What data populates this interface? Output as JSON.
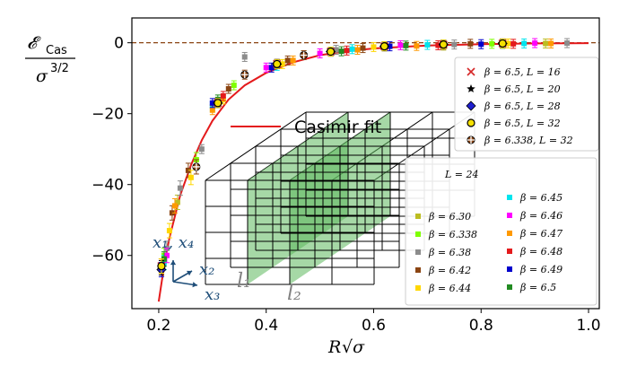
{
  "chart_data": {
    "type": "scatter",
    "xlabel": "R√σ",
    "ylabel": "𝓔Cas / σ^{3/2}",
    "xlim": [
      0.15,
      1.02
    ],
    "ylim": [
      -75,
      7
    ],
    "xticks": [
      "0.2",
      "0.4",
      "0.6",
      "0.8",
      "1.0"
    ],
    "yticks": [
      "0",
      "−20",
      "−40",
      "−60"
    ],
    "reference_line": {
      "y": 0,
      "style": "dashed",
      "color": "#8B4513"
    },
    "fit": {
      "label": "Casimir fit",
      "color": "#e41a1c",
      "x": [
        0.2,
        0.21,
        0.22,
        0.24,
        0.26,
        0.28,
        0.3,
        0.33,
        0.36,
        0.4,
        0.45,
        0.5,
        0.55,
        0.6,
        0.7,
        0.8,
        0.9,
        1.0
      ],
      "y": [
        -73,
        -63,
        -55,
        -43,
        -34.5,
        -27.5,
        -22,
        -16,
        -12,
        -8.5,
        -5.5,
        -3.5,
        -2.4,
        -1.6,
        -0.8,
        -0.4,
        -0.2,
        -0.1
      ]
    },
    "legend_top": [
      {
        "label": "β = 6.5, L = 16",
        "marker": "x",
        "color": "#d62728"
      },
      {
        "label": "β = 6.5, L = 20",
        "marker": "star",
        "color": "#000000"
      },
      {
        "label": "β = 6.5, L = 28",
        "marker": "diamond",
        "color": "#1f1fcf"
      },
      {
        "label": "β = 6.5, L = 32",
        "marker": "circle",
        "color": "#f5e000"
      },
      {
        "label": "β = 6.338, L = 32",
        "marker": "plus",
        "color": "#8B4513"
      }
    ],
    "legend_l24": {
      "title": "L = 24",
      "entries": [
        {
          "label": "β = 6.30",
          "color": "#bcbd22"
        },
        {
          "label": "β = 6.338",
          "color": "#7fff00"
        },
        {
          "label": "β = 6.38",
          "color": "#8c8c8c"
        },
        {
          "label": "β = 6.42",
          "color": "#8B4513"
        },
        {
          "label": "β = 6.44",
          "color": "#ffd700"
        },
        {
          "label": "β = 6.45",
          "color": "#00e5ee"
        },
        {
          "label": "β = 6.46",
          "color": "#ff00ff"
        },
        {
          "label": "β = 6.47",
          "color": "#ff9900"
        },
        {
          "label": "β = 6.48",
          "color": "#e41a1c"
        },
        {
          "label": "β = 6.49",
          "color": "#0000cd"
        },
        {
          "label": "β = 6.5",
          "color": "#228b22"
        }
      ]
    },
    "inset_labels": {
      "axis_top": "x₁, x₄",
      "axis_mid": "x₂",
      "axis_bot": "x₃",
      "l1": "l₁",
      "l2": "l₂"
    },
    "series": [
      {
        "marker": "square",
        "color": "#bcbd22",
        "x": [
          0.205,
          0.235,
          0.31,
          0.52,
          0.73,
          0.92
        ],
        "y": [
          -63,
          -45,
          -17,
          -2.5,
          -0.8,
          -0.2
        ]
      },
      {
        "marker": "square",
        "color": "#7fff00",
        "x": [
          0.21,
          0.27,
          0.34,
          0.47,
          0.62,
          0.82
        ],
        "y": [
          -60,
          -33,
          -12,
          -3.5,
          -1,
          -0.3
        ]
      },
      {
        "marker": "square",
        "color": "#8c8c8c",
        "x": [
          0.215,
          0.24,
          0.28,
          0.36,
          0.53,
          0.75,
          0.96
        ],
        "y": [
          -58,
          -41,
          -30,
          -4,
          -2,
          -0.5,
          -0.1
        ]
      },
      {
        "marker": "square",
        "color": "#8B4513",
        "x": [
          0.225,
          0.255,
          0.33,
          0.44,
          0.58,
          0.78
        ],
        "y": [
          -48,
          -36,
          -13,
          -5,
          -1.5,
          -0.3
        ]
      },
      {
        "marker": "square",
        "color": "#ffd700",
        "x": [
          0.22,
          0.26,
          0.32,
          0.43,
          0.6,
          0.85
        ],
        "y": [
          -53,
          -38,
          -16,
          -6,
          -1.2,
          -0.2
        ]
      },
      {
        "marker": "square",
        "color": "#00e5ee",
        "x": [
          0.21,
          0.3,
          0.42,
          0.56,
          0.7,
          0.88
        ],
        "y": [
          -62,
          -18,
          -6.5,
          -1.8,
          -0.6,
          -0.2
        ]
      },
      {
        "marker": "square",
        "color": "#ff00ff",
        "x": [
          0.215,
          0.31,
          0.4,
          0.5,
          0.65,
          0.9
        ],
        "y": [
          -60,
          -17,
          -7,
          -3,
          -0.7,
          -0.1
        ]
      },
      {
        "marker": "square",
        "color": "#ff9900",
        "x": [
          0.23,
          0.3,
          0.45,
          0.57,
          0.68,
          0.93
        ],
        "y": [
          -46,
          -19,
          -5,
          -2,
          -0.9,
          -0.2
        ]
      },
      {
        "marker": "square",
        "color": "#e41a1c",
        "x": [
          0.205,
          0.32,
          0.42,
          0.55,
          0.72,
          0.86
        ],
        "y": [
          -63,
          -15,
          -6,
          -2.2,
          -0.7,
          -0.3
        ]
      },
      {
        "marker": "square",
        "color": "#0000cd",
        "x": [
          0.205,
          0.3,
          0.41,
          0.52,
          0.63,
          0.8
        ],
        "y": [
          -64,
          -17,
          -7,
          -2.5,
          -1,
          -0.4
        ]
      },
      {
        "marker": "square",
        "color": "#228b22",
        "x": [
          0.21,
          0.31,
          0.42,
          0.54,
          0.66,
          0.84
        ],
        "y": [
          -61,
          -16,
          -6,
          -2.4,
          -0.8,
          -0.3
        ]
      },
      {
        "marker": "x",
        "color": "#d62728",
        "x": [
          0.205,
          0.31,
          0.42,
          0.52,
          0.62,
          0.73,
          0.84
        ],
        "y": [
          -63,
          -17,
          -6,
          -2.5,
          -1,
          -0.5,
          -0.2
        ]
      },
      {
        "marker": "star",
        "color": "#000000",
        "x": [
          0.205,
          0.31,
          0.42,
          0.52,
          0.62,
          0.73,
          0.84
        ],
        "y": [
          -63.5,
          -17,
          -6,
          -2.5,
          -1,
          -0.5,
          -0.2
        ]
      },
      {
        "marker": "diamond",
        "color": "#1f1fcf",
        "x": [
          0.205,
          0.31,
          0.42,
          0.52,
          0.62,
          0.73,
          0.84
        ],
        "y": [
          -64,
          -17,
          -6,
          -2.5,
          -1,
          -0.5,
          -0.2
        ]
      },
      {
        "marker": "circle",
        "color": "#f5e000",
        "x": [
          0.205,
          0.31,
          0.42,
          0.52,
          0.62,
          0.73,
          0.84
        ],
        "y": [
          -63,
          -17,
          -6,
          -2.5,
          -1,
          -0.5,
          -0.2
        ]
      },
      {
        "marker": "plus",
        "color": "#8B4513",
        "x": [
          0.27,
          0.36,
          0.47
        ],
        "y": [
          -35,
          -9,
          -3.5
        ]
      }
    ]
  }
}
